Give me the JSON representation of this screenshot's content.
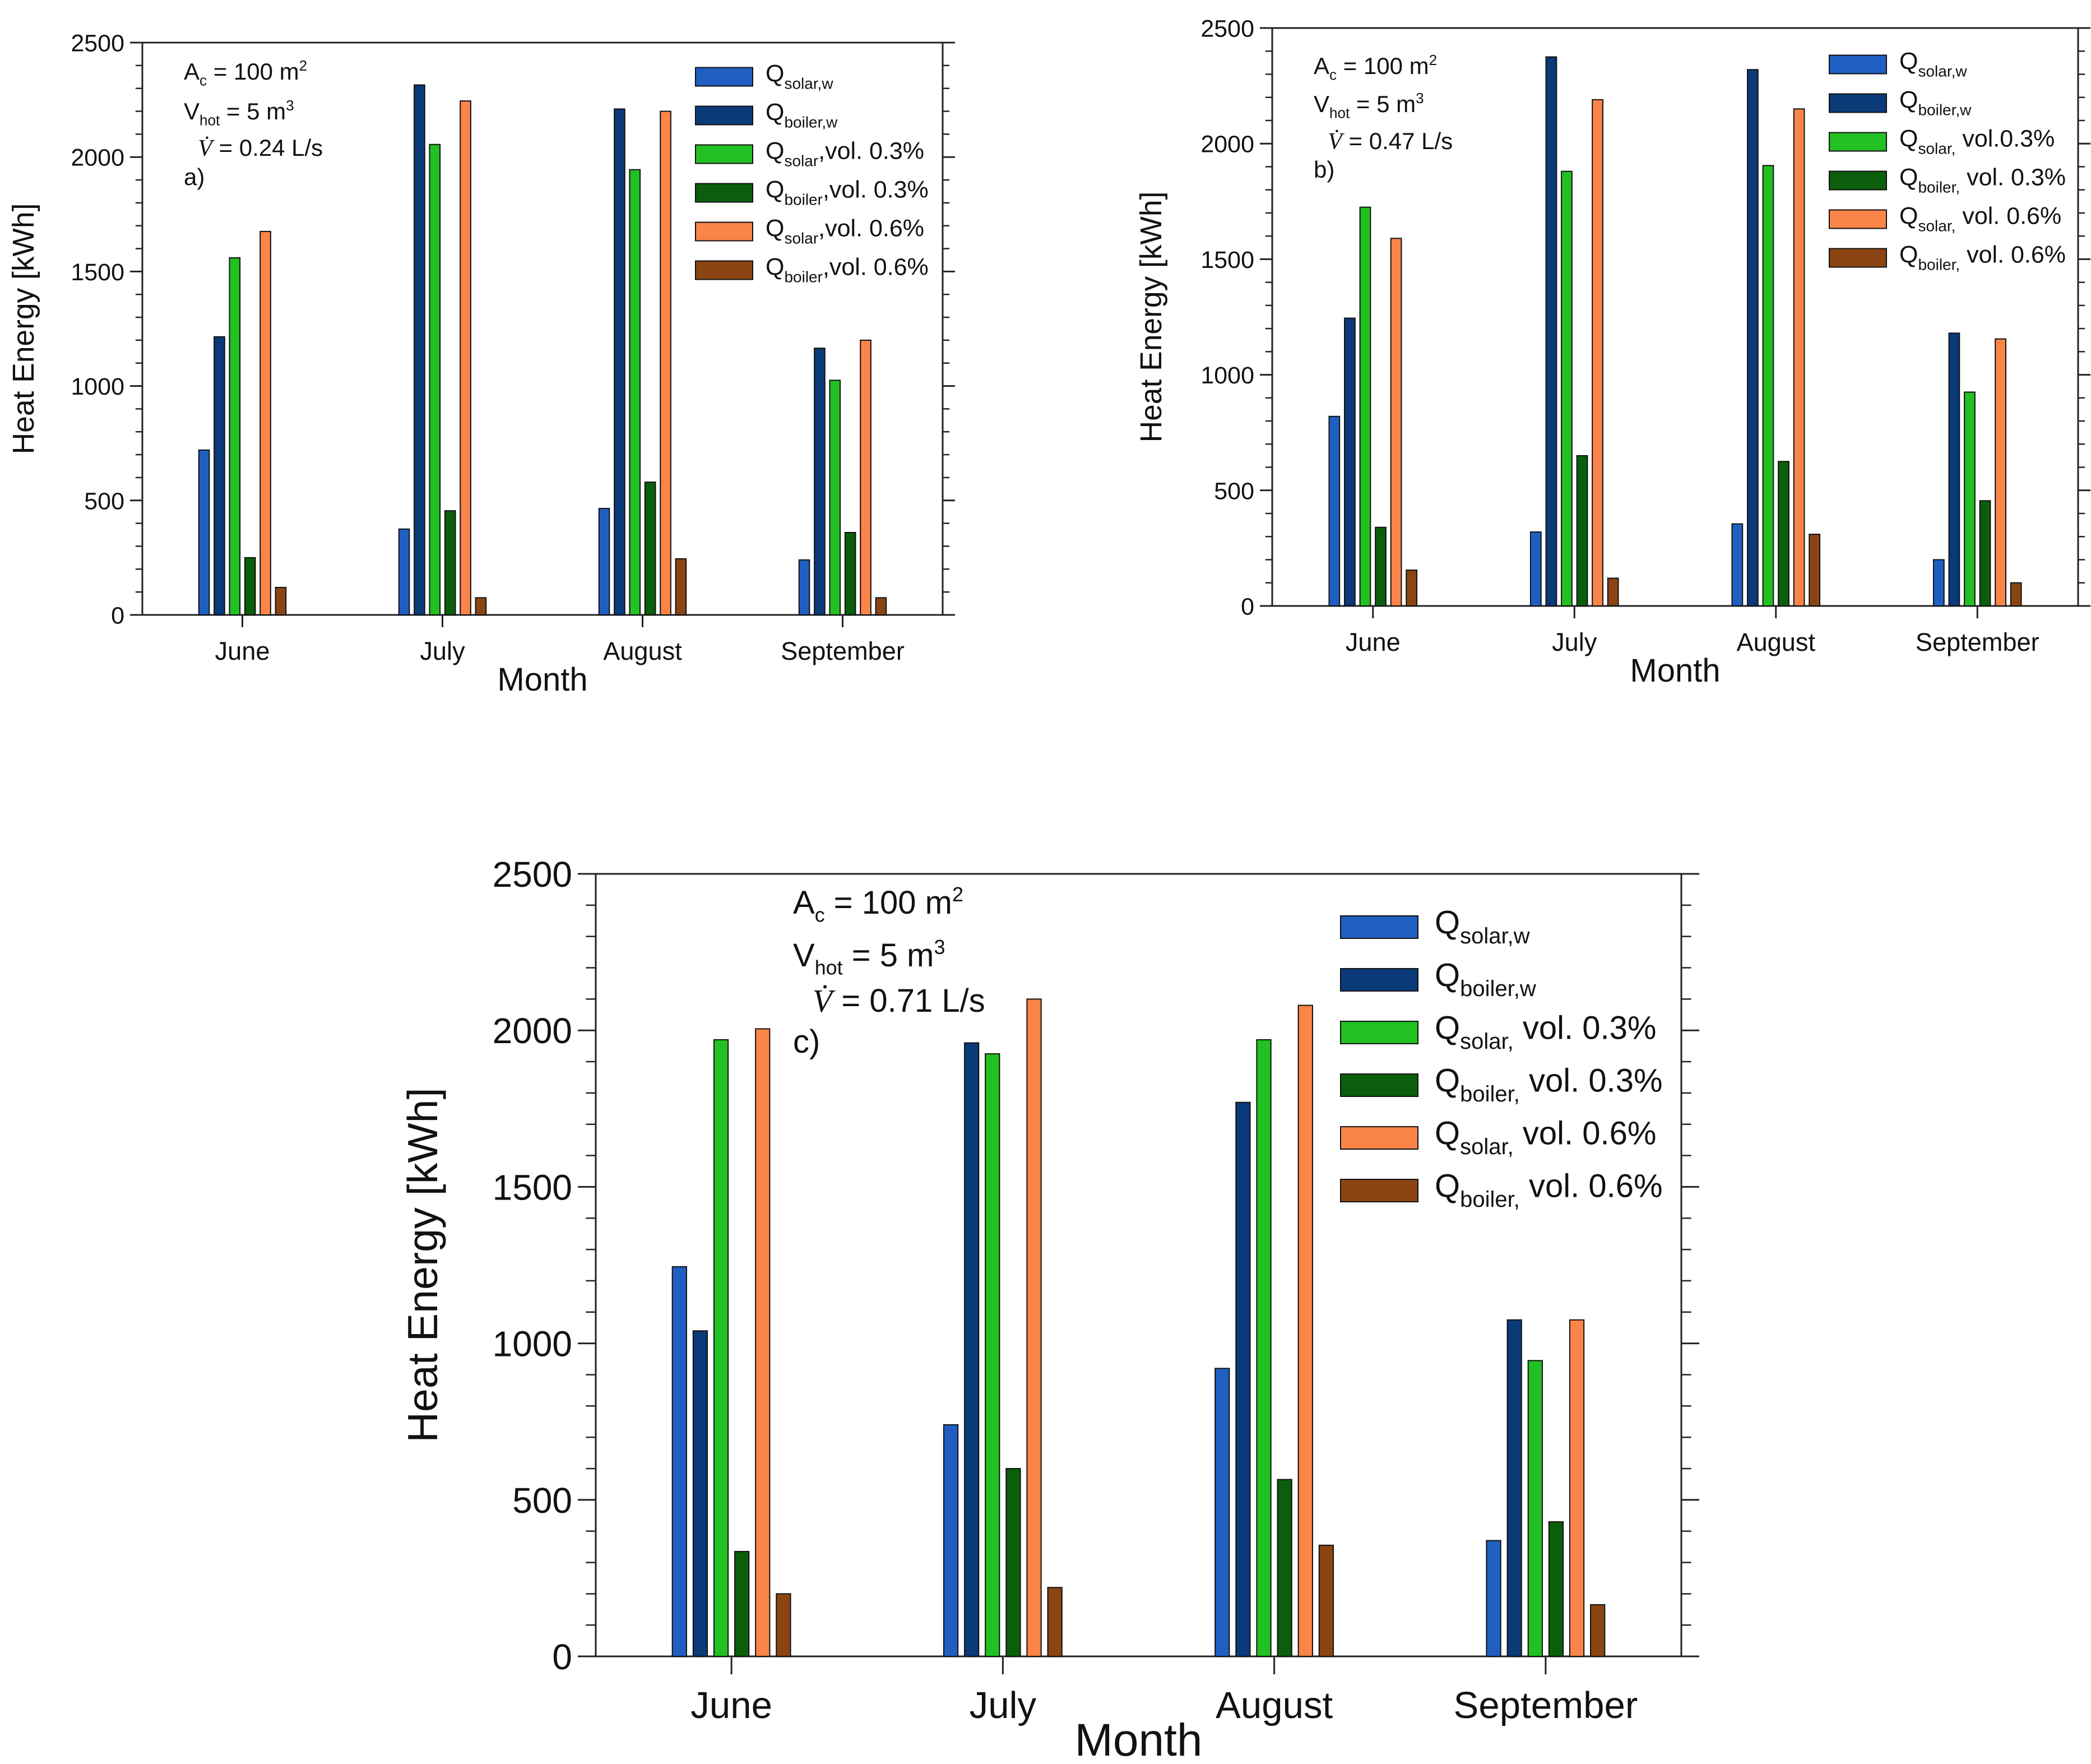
{
  "chart_data": [
    {
      "type": "bar",
      "panel_label": "a)",
      "xlabel": "Month",
      "ylabel": "Heat Energy [kWh]",
      "ylim": [
        0,
        2500
      ],
      "yticks": [
        "0",
        "500",
        "1000",
        "1500",
        "2000",
        "2500"
      ],
      "categories": [
        "June",
        "July",
        "August",
        "September"
      ],
      "params": {
        "ac": "A",
        "ac_sub": "c",
        "ac_val": " = 100 m",
        "ac_sup": "2",
        "vh": "V",
        "vh_sub": "hot",
        "vh_val": " = 5 m",
        "vh_sup": "3",
        "vf": "V̇",
        "vf_val": " = 0.24 L/s"
      },
      "series": [
        {
          "name": "Q",
          "sub": "solar,w",
          "tail": "",
          "color": "#1f5fc2",
          "values": [
            720,
            375,
            465,
            240
          ]
        },
        {
          "name": "Q",
          "sub": "boiler,w",
          "tail": "",
          "color": "#0a3a78",
          "values": [
            1215,
            2315,
            2210,
            1165
          ]
        },
        {
          "name": "Q",
          "sub": "solar",
          "tail": ",vol. 0.3%",
          "color": "#22c022",
          "values": [
            1560,
            2055,
            1945,
            1025
          ]
        },
        {
          "name": "Q",
          "sub": "boiler",
          "tail": ",vol. 0.3%",
          "color": "#0b5e0b",
          "values": [
            250,
            455,
            580,
            360
          ]
        },
        {
          "name": "Q",
          "sub": "solar",
          "tail": ",vol. 0.6%",
          "color": "#fb8448",
          "values": [
            1675,
            2245,
            2200,
            1200
          ]
        },
        {
          "name": "Q",
          "sub": "boiler",
          "tail": ",vol. 0.6%",
          "color": "#8b4513",
          "values": [
            120,
            75,
            245,
            75
          ]
        }
      ]
    },
    {
      "type": "bar",
      "panel_label": "b)",
      "xlabel": "Month",
      "ylabel": "Heat Energy [kWh]",
      "ylim": [
        0,
        2500
      ],
      "yticks": [
        "0",
        "500",
        "1000",
        "1500",
        "2000",
        "2500"
      ],
      "categories": [
        "June",
        "July",
        "August",
        "September"
      ],
      "params": {
        "ac": "A",
        "ac_sub": "c",
        "ac_val": " = 100 m",
        "ac_sup": "2",
        "vh": "V",
        "vh_sub": "hot",
        "vh_val": " = 5 m",
        "vh_sup": "3",
        "vf": "V̇",
        "vf_val": " = 0.47 L/s"
      },
      "series": [
        {
          "name": "Q",
          "sub": "solar,w",
          "tail": "",
          "color": "#1f5fc2",
          "values": [
            820,
            320,
            355,
            200
          ]
        },
        {
          "name": "Q",
          "sub": "boiler,w",
          "tail": "",
          "color": "#0a3a78",
          "values": [
            1245,
            2375,
            2320,
            1180
          ]
        },
        {
          "name": "Q",
          "sub": "solar,",
          "tail": " vol.0.3%",
          "color": "#22c022",
          "values": [
            1725,
            1880,
            1905,
            925
          ]
        },
        {
          "name": "Q",
          "sub": "boiler,",
          "tail": " vol. 0.3%",
          "color": "#0b5e0b",
          "values": [
            340,
            650,
            625,
            455
          ]
        },
        {
          "name": "Q",
          "sub": "solar,",
          "tail": " vol. 0.6%",
          "color": "#fb8448",
          "values": [
            1590,
            2190,
            2150,
            1155
          ]
        },
        {
          "name": "Q",
          "sub": "boiler,",
          "tail": " vol. 0.6%",
          "color": "#8b4513",
          "values": [
            155,
            120,
            310,
            100
          ]
        }
      ]
    },
    {
      "type": "bar",
      "panel_label": "c)",
      "xlabel": "Month",
      "ylabel": "Heat Energy [kWh]",
      "ylim": [
        0,
        2500
      ],
      "yticks": [
        "0",
        "500",
        "1000",
        "1500",
        "2000",
        "2500"
      ],
      "categories": [
        "June",
        "July",
        "August",
        "September"
      ],
      "params": {
        "ac": "A",
        "ac_sub": "c",
        "ac_val": " = 100 m",
        "ac_sup": "2",
        "vh": "V",
        "vh_sub": "hot",
        "vh_val": " = 5 m",
        "vh_sup": "3",
        "vf": "V̇",
        "vf_val": " = 0.71 L/s"
      },
      "series": [
        {
          "name": "Q",
          "sub": "solar,w",
          "tail": "",
          "color": "#1f5fc2",
          "values": [
            1245,
            740,
            920,
            370
          ]
        },
        {
          "name": "Q",
          "sub": "boiler,w",
          "tail": "",
          "color": "#0a3a78",
          "values": [
            1040,
            1960,
            1770,
            1075
          ]
        },
        {
          "name": "Q",
          "sub": "solar,",
          "tail": " vol. 0.3%",
          "color": "#22c022",
          "values": [
            1970,
            1925,
            1970,
            945
          ]
        },
        {
          "name": "Q",
          "sub": "boiler,",
          "tail": " vol. 0.3%",
          "color": "#0b5e0b",
          "values": [
            335,
            600,
            565,
            430
          ]
        },
        {
          "name": "Q",
          "sub": "solar,",
          "tail": " vol. 0.6%",
          "color": "#fb8448",
          "values": [
            2005,
            2100,
            2080,
            1075
          ]
        },
        {
          "name": "Q",
          "sub": "boiler,",
          "tail": " vol. 0.6%",
          "color": "#8b4513",
          "values": [
            200,
            220,
            355,
            165
          ]
        }
      ]
    }
  ]
}
